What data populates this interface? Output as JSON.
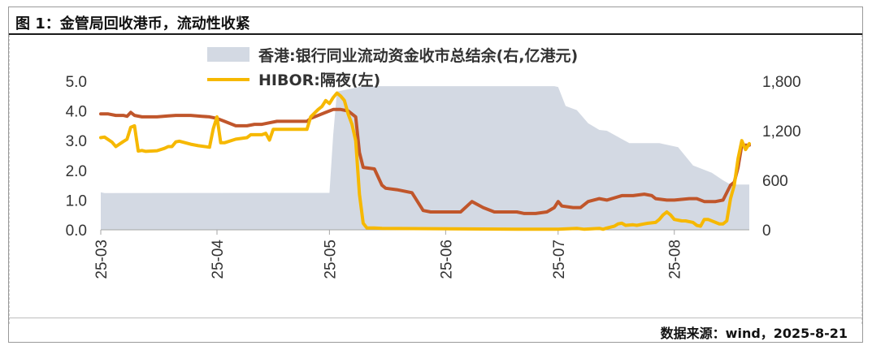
{
  "title": "图 1：金管局回收港币，流动性收紧",
  "source": "数据来源：wind，2025-8-21",
  "colors": {
    "area": "#d3d9e3",
    "hibor": "#f6b800",
    "ma": "#c0562b",
    "axis": "#a6a6a6",
    "text": "#333333"
  },
  "chart_data": {
    "type": "line",
    "x_ticks": [
      "25-03",
      "25-04",
      "25-05",
      "25-06",
      "25-07",
      "25-08"
    ],
    "xlim": [
      "2025-03-01",
      "2025-08-21"
    ],
    "y_left": {
      "ylim": [
        0.0,
        5.0
      ],
      "ticks": [
        "5.0",
        "4.0",
        "3.0",
        "2.0",
        "1.0",
        "0.0"
      ]
    },
    "y_right": {
      "ylim": [
        0,
        1800
      ],
      "ticks": [
        "1,800",
        "1,200",
        "600",
        "0"
      ]
    },
    "grid": false,
    "legend_position": "top-center",
    "series": [
      {
        "name": "香港:银行同业流动资金收市总结余(右,亿港元)",
        "type": "area",
        "axis": "right",
        "points": [
          [
            "2025-03-01",
            455
          ],
          [
            "2025-03-02",
            445
          ],
          [
            "2025-03-25",
            447
          ],
          [
            "2025-04-15",
            448
          ],
          [
            "2025-05-01",
            448
          ],
          [
            "2025-05-02",
            1150
          ],
          [
            "2025-05-03",
            1674
          ],
          [
            "2025-05-10",
            1740
          ],
          [
            "2025-06-01",
            1740
          ],
          [
            "2025-06-30",
            1740
          ],
          [
            "2025-07-01",
            1730
          ],
          [
            "2025-07-03",
            1500
          ],
          [
            "2025-07-06",
            1450
          ],
          [
            "2025-07-09",
            1290
          ],
          [
            "2025-07-12",
            1210
          ],
          [
            "2025-07-14",
            1200
          ],
          [
            "2025-07-20",
            1050
          ],
          [
            "2025-07-28",
            1050
          ],
          [
            "2025-08-02",
            1000
          ],
          [
            "2025-08-06",
            780
          ],
          [
            "2025-08-11",
            690
          ],
          [
            "2025-08-14",
            600
          ],
          [
            "2025-08-16",
            548
          ],
          [
            "2025-08-21",
            548
          ]
        ]
      },
      {
        "name": "HIBOR:隔夜(左)",
        "type": "line",
        "axis": "left",
        "points": [
          [
            "2025-03-01",
            3.1
          ],
          [
            "2025-03-02",
            3.12
          ],
          [
            "2025-03-04",
            2.95
          ],
          [
            "2025-03-05",
            2.8
          ],
          [
            "2025-03-07",
            2.97
          ],
          [
            "2025-03-08",
            3.05
          ],
          [
            "2025-03-09",
            3.45
          ],
          [
            "2025-03-10",
            3.5
          ],
          [
            "2025-03-11",
            2.65
          ],
          [
            "2025-03-12",
            2.67
          ],
          [
            "2025-03-13",
            2.64
          ],
          [
            "2025-03-16",
            2.66
          ],
          [
            "2025-03-18",
            2.74
          ],
          [
            "2025-03-19",
            2.8
          ],
          [
            "2025-03-20",
            2.8
          ],
          [
            "2025-03-21",
            2.96
          ],
          [
            "2025-03-22",
            2.98
          ],
          [
            "2025-03-25",
            2.88
          ],
          [
            "2025-03-27",
            2.83
          ],
          [
            "2025-03-30",
            2.78
          ],
          [
            "2025-03-31",
            3.4
          ],
          [
            "2025-04-01",
            3.8
          ],
          [
            "2025-04-02",
            2.93
          ],
          [
            "2025-04-03",
            2.93
          ],
          [
            "2025-04-06",
            3.05
          ],
          [
            "2025-04-09",
            3.1
          ],
          [
            "2025-04-10",
            3.2
          ],
          [
            "2025-04-13",
            3.2
          ],
          [
            "2025-04-14",
            3.25
          ],
          [
            "2025-04-15",
            3.02
          ],
          [
            "2025-04-16",
            3.38
          ],
          [
            "2025-04-25",
            3.38
          ],
          [
            "2025-04-26",
            3.8
          ],
          [
            "2025-04-28",
            4.05
          ],
          [
            "2025-04-29",
            4.15
          ],
          [
            "2025-04-30",
            4.35
          ],
          [
            "2025-05-01",
            4.25
          ],
          [
            "2025-05-02",
            4.45
          ],
          [
            "2025-05-03",
            4.6
          ],
          [
            "2025-05-04",
            4.5
          ],
          [
            "2025-05-05",
            4.35
          ],
          [
            "2025-05-06",
            3.9
          ],
          [
            "2025-05-07",
            3.55
          ],
          [
            "2025-05-08",
            3.0
          ],
          [
            "2025-05-09",
            1.2
          ],
          [
            "2025-05-10",
            0.22
          ],
          [
            "2025-05-11",
            0.06
          ],
          [
            "2025-05-13",
            0.06
          ],
          [
            "2025-05-15",
            0.05
          ],
          [
            "2025-06-20",
            0.02
          ],
          [
            "2025-07-01",
            0.02
          ],
          [
            "2025-07-06",
            0.05
          ],
          [
            "2025-07-08",
            0.02
          ],
          [
            "2025-07-12",
            0.05
          ],
          [
            "2025-07-13",
            0.02
          ],
          [
            "2025-07-14",
            0.06
          ],
          [
            "2025-07-16",
            0.12
          ],
          [
            "2025-07-17",
            0.2
          ],
          [
            "2025-07-18",
            0.22
          ],
          [
            "2025-07-19",
            0.15
          ],
          [
            "2025-07-21",
            0.17
          ],
          [
            "2025-07-22",
            0.15
          ],
          [
            "2025-07-24",
            0.2
          ],
          [
            "2025-07-25",
            0.22
          ],
          [
            "2025-07-27",
            0.25
          ],
          [
            "2025-07-28",
            0.35
          ],
          [
            "2025-07-29",
            0.5
          ],
          [
            "2025-07-30",
            0.6
          ],
          [
            "2025-07-31",
            0.5
          ],
          [
            "2025-08-01",
            0.35
          ],
          [
            "2025-08-03",
            0.3
          ],
          [
            "2025-08-04",
            0.3
          ],
          [
            "2025-08-06",
            0.25
          ],
          [
            "2025-08-07",
            0.15
          ],
          [
            "2025-08-08",
            0.12
          ],
          [
            "2025-08-09",
            0.35
          ],
          [
            "2025-08-10",
            0.35
          ],
          [
            "2025-08-12",
            0.25
          ],
          [
            "2025-08-13",
            0.2
          ],
          [
            "2025-08-14",
            0.2
          ],
          [
            "2025-08-15",
            0.3
          ],
          [
            "2025-08-16",
            1.05
          ],
          [
            "2025-08-17",
            1.5
          ],
          [
            "2025-08-18",
            2.4
          ],
          [
            "2025-08-19",
            3.0
          ],
          [
            "2025-08-20",
            2.7
          ],
          [
            "2025-08-21",
            2.9
          ]
        ]
      },
      {
        "name": "",
        "type": "line",
        "axis": "left",
        "points": [
          [
            "2025-03-01",
            3.9
          ],
          [
            "2025-03-03",
            3.9
          ],
          [
            "2025-03-05",
            3.85
          ],
          [
            "2025-03-07",
            3.85
          ],
          [
            "2025-03-08",
            3.82
          ],
          [
            "2025-03-09",
            3.95
          ],
          [
            "2025-03-10",
            3.85
          ],
          [
            "2025-03-12",
            3.8
          ],
          [
            "2025-03-16",
            3.8
          ],
          [
            "2025-03-19",
            3.83
          ],
          [
            "2025-03-21",
            3.85
          ],
          [
            "2025-03-25",
            3.85
          ],
          [
            "2025-03-28",
            3.82
          ],
          [
            "2025-03-30",
            3.8
          ],
          [
            "2025-04-01",
            3.75
          ],
          [
            "2025-04-03",
            3.65
          ],
          [
            "2025-04-06",
            3.5
          ],
          [
            "2025-04-09",
            3.5
          ],
          [
            "2025-04-11",
            3.55
          ],
          [
            "2025-04-13",
            3.55
          ],
          [
            "2025-04-15",
            3.6
          ],
          [
            "2025-04-17",
            3.65
          ],
          [
            "2025-04-19",
            3.65
          ],
          [
            "2025-04-25",
            3.65
          ],
          [
            "2025-04-26",
            3.75
          ],
          [
            "2025-04-30",
            3.95
          ],
          [
            "2025-05-02",
            4.05
          ],
          [
            "2025-05-04",
            4.05
          ],
          [
            "2025-05-06",
            4.0
          ],
          [
            "2025-05-07",
            3.9
          ],
          [
            "2025-05-08",
            3.8
          ],
          [
            "2025-05-09",
            2.6
          ],
          [
            "2025-05-10",
            2.1
          ],
          [
            "2025-05-13",
            2.05
          ],
          [
            "2025-05-15",
            1.5
          ],
          [
            "2025-05-16",
            1.4
          ],
          [
            "2025-05-19",
            1.35
          ],
          [
            "2025-05-23",
            1.25
          ],
          [
            "2025-05-25",
            0.85
          ],
          [
            "2025-05-26",
            0.65
          ],
          [
            "2025-05-28",
            0.6
          ],
          [
            "2025-06-01",
            0.6
          ],
          [
            "2025-06-05",
            0.6
          ],
          [
            "2025-06-08",
            0.95
          ],
          [
            "2025-06-11",
            0.75
          ],
          [
            "2025-06-14",
            0.6
          ],
          [
            "2025-06-17",
            0.6
          ],
          [
            "2025-06-20",
            0.6
          ],
          [
            "2025-06-22",
            0.55
          ],
          [
            "2025-06-25",
            0.55
          ],
          [
            "2025-06-28",
            0.6
          ],
          [
            "2025-06-30",
            0.75
          ],
          [
            "2025-07-01",
            0.95
          ],
          [
            "2025-07-02",
            0.8
          ],
          [
            "2025-07-05",
            0.75
          ],
          [
            "2025-07-07",
            0.75
          ],
          [
            "2025-07-09",
            0.95
          ],
          [
            "2025-07-12",
            1.05
          ],
          [
            "2025-07-14",
            1.0
          ],
          [
            "2025-07-18",
            1.15
          ],
          [
            "2025-07-21",
            1.15
          ],
          [
            "2025-07-24",
            1.2
          ],
          [
            "2025-07-26",
            1.15
          ],
          [
            "2025-07-27",
            1.05
          ],
          [
            "2025-07-30",
            1.0
          ],
          [
            "2025-08-01",
            1.0
          ],
          [
            "2025-08-05",
            1.05
          ],
          [
            "2025-08-07",
            1.05
          ],
          [
            "2025-08-09",
            0.95
          ],
          [
            "2025-08-12",
            0.95
          ],
          [
            "2025-08-14",
            1.0
          ],
          [
            "2025-08-16",
            1.5
          ],
          [
            "2025-08-17",
            1.6
          ],
          [
            "2025-08-18",
            2.1
          ],
          [
            "2025-08-19",
            2.85
          ],
          [
            "2025-08-21",
            2.85
          ]
        ]
      }
    ]
  }
}
